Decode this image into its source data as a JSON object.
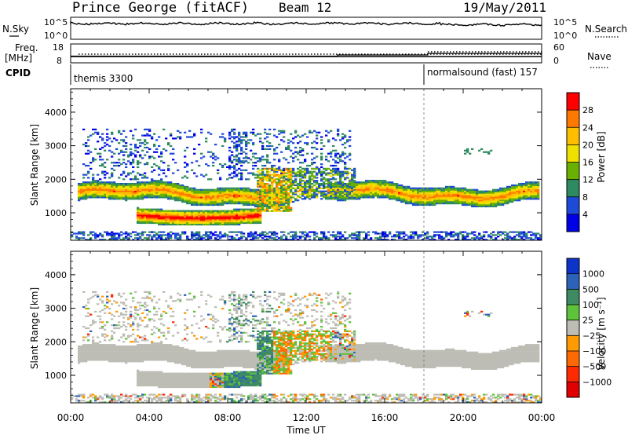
{
  "header": {
    "station": "Prince George (fitACF)",
    "beam": "Beam 12",
    "date": "19/May/2011"
  },
  "status_panels": {
    "nsky": {
      "label": "N.Sky",
      "ticks": [
        "10^5",
        "10^0"
      ]
    },
    "nsearch": {
      "label": "N.Search",
      "ticks": [
        "10^5",
        "10^0"
      ]
    },
    "freq": {
      "label_top": "Freq.",
      "label_bottom": "[MHz]",
      "ticks": [
        "18",
        "8"
      ]
    },
    "nave": {
      "label": "Nave",
      "ticks": [
        "60",
        "0"
      ]
    },
    "cpid": {
      "label": "CPID",
      "modes": [
        {
          "name": "themis 3300",
          "start_hour": 0
        },
        {
          "name": "normalsound (fast) 157",
          "start_hour": 18
        }
      ]
    }
  },
  "chart_data": [
    {
      "type": "heatmap",
      "panel": "power",
      "xlabel": "Time UT",
      "ylabel": "Slant Range [km]",
      "xlim": [
        0,
        24
      ],
      "ylim": [
        180,
        4700
      ],
      "xticks": [
        "00:00",
        "04:00",
        "08:00",
        "12:00",
        "16:00",
        "20:00",
        "00:00"
      ],
      "yticks": [
        1000,
        2000,
        3000,
        4000
      ],
      "colorbar": {
        "label": "Power [dB]",
        "ticks": [
          "28",
          "24",
          "20",
          "16",
          "12",
          "8",
          "4"
        ],
        "colors": [
          "#ff0000",
          "#ff7800",
          "#ffbe00",
          "#f0e000",
          "#6ab000",
          "#2e8a60",
          "#1e4ad8",
          "#0000e6"
        ]
      },
      "structures": [
        {
          "name": "main band",
          "t_start": 0.3,
          "t_end": 23.8,
          "range_km": 1550,
          "peak_db": 22
        },
        {
          "name": "lower arc",
          "t_start": 3.5,
          "t_end": 9.5,
          "range_km": 900,
          "peak_db": 30
        },
        {
          "name": "rising feature",
          "t_start": 9.5,
          "t_end": 11.0,
          "range_km": 1600,
          "peak_db": 26
        },
        {
          "name": "upper scatter",
          "t_start": 0.5,
          "t_end": 14.0,
          "range_km": 2800,
          "peak_db": 8
        }
      ]
    },
    {
      "type": "heatmap",
      "panel": "velocity",
      "xlabel": "Time UT",
      "ylabel": "Slant Range [km]",
      "xlim": [
        0,
        24
      ],
      "ylim": [
        180,
        4700
      ],
      "xticks": [
        "00:00",
        "04:00",
        "08:00",
        "12:00",
        "16:00",
        "20:00",
        "00:00"
      ],
      "yticks": [
        1000,
        2000,
        3000,
        4000
      ],
      "colorbar": {
        "label": "Velocity [m s⁻¹]",
        "ticks": [
          "1000",
          "500",
          "100",
          "25",
          "−25",
          "−100",
          "−500",
          "−1000"
        ],
        "colors": [
          "#0c34c8",
          "#2c62b8",
          "#3e8a62",
          "#5ec23a",
          "#bdbdb5",
          "#ff9a00",
          "#ff6a00",
          "#ff2a00",
          "#e00000"
        ]
      },
      "structures": [
        {
          "name": "ground scatter band",
          "t_start": 0.3,
          "t_end": 23.8,
          "range_km": 1550,
          "velocity_ms": 0
        },
        {
          "name": "positive flow",
          "t_start": 7.8,
          "t_end": 12.5,
          "range_km": 1400,
          "velocity_ms": 300
        },
        {
          "name": "negative flow",
          "t_start": 10.0,
          "t_end": 13.0,
          "range_km": 1700,
          "velocity_ms": -200
        }
      ]
    }
  ]
}
